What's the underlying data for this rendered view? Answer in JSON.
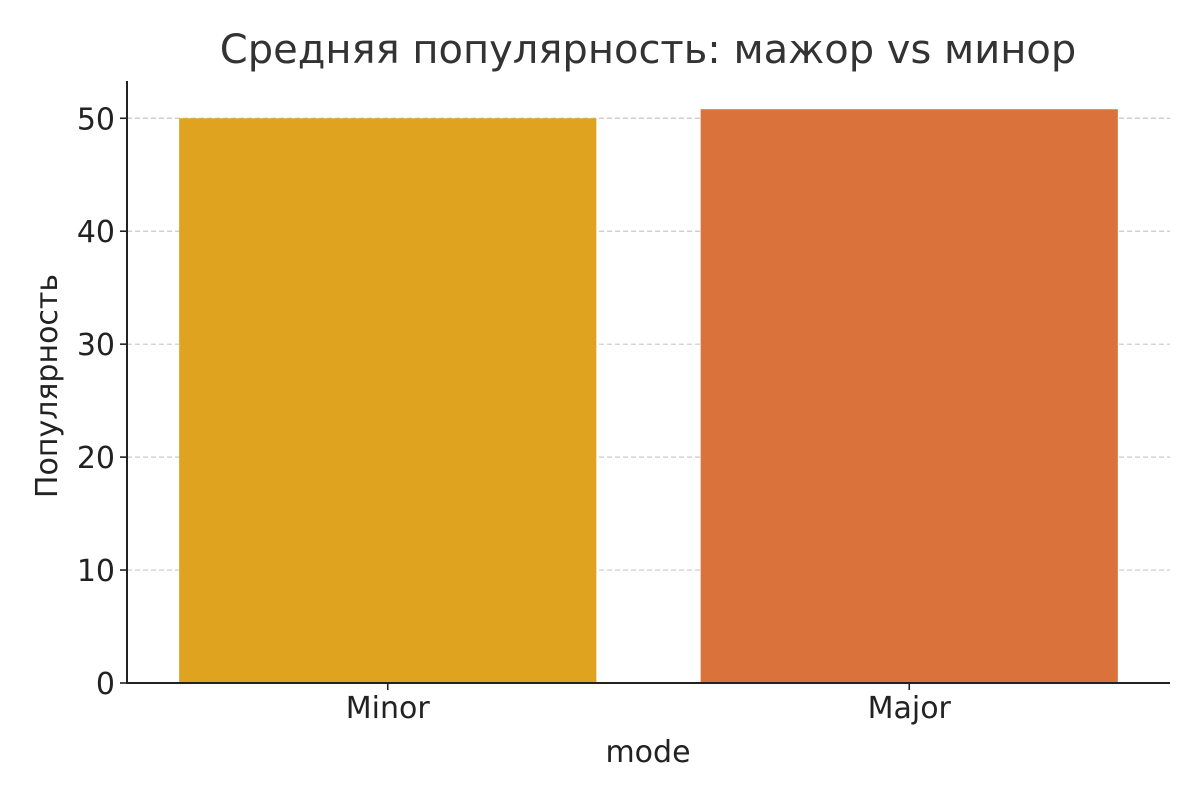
{
  "chart_data": {
    "type": "bar",
    "title": "Средняя популярность: мажор vs минор",
    "xlabel": "mode",
    "ylabel": "Популярность",
    "categories": [
      "Minor",
      "Major"
    ],
    "values": [
      50.0,
      50.8
    ],
    "colors": [
      "#DFA320",
      "#DA733B"
    ],
    "ylim": [
      0,
      53.3
    ],
    "yticks": [
      0,
      10,
      20,
      30,
      40,
      50
    ],
    "grid": "y-dashed",
    "legend": "none"
  }
}
